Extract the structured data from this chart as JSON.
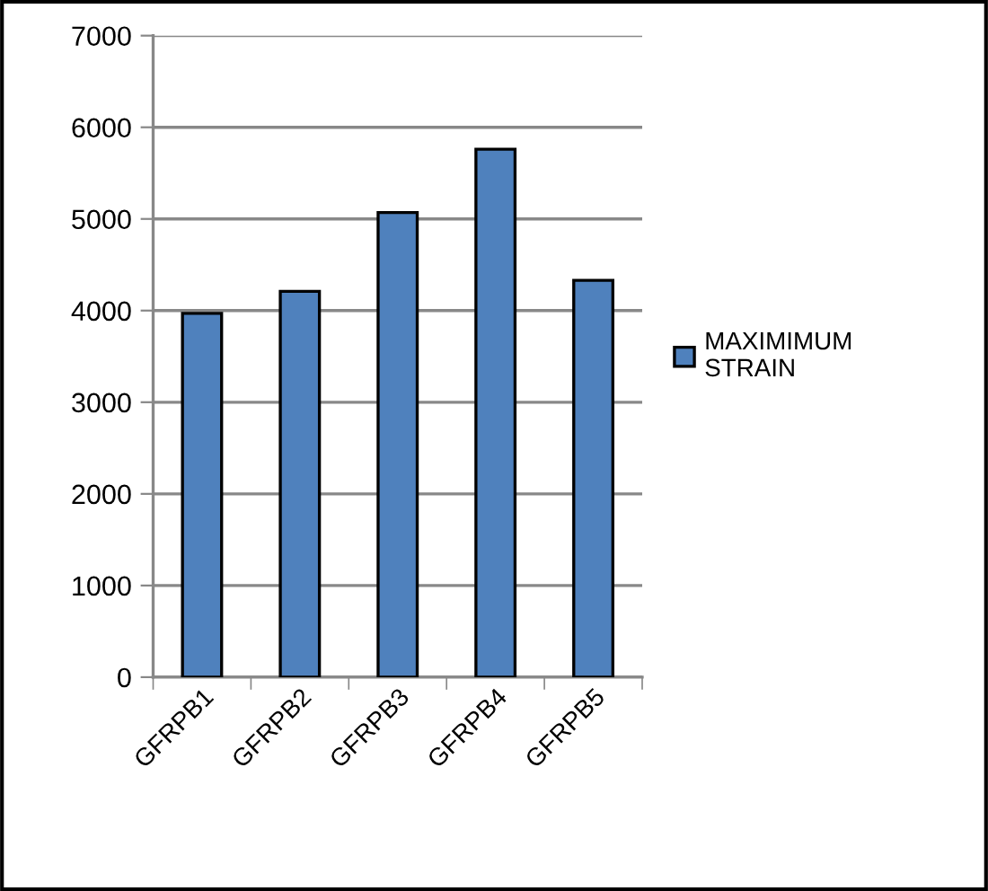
{
  "chart_data": {
    "type": "bar",
    "categories": [
      "GFRPB1",
      "GFRPB2",
      "GFRPB3",
      "GFRPB4",
      "GFRPB5"
    ],
    "series": [
      {
        "name": "MAXIMIMUM STRAIN",
        "color": "#4f81bd",
        "values": [
          3970,
          4210,
          5070,
          5760,
          4330
        ]
      }
    ],
    "ylim": [
      0,
      7000
    ],
    "yticks": [
      0,
      1000,
      2000,
      3000,
      4000,
      5000,
      6000,
      7000
    ],
    "grid": "y",
    "legend": "right"
  }
}
